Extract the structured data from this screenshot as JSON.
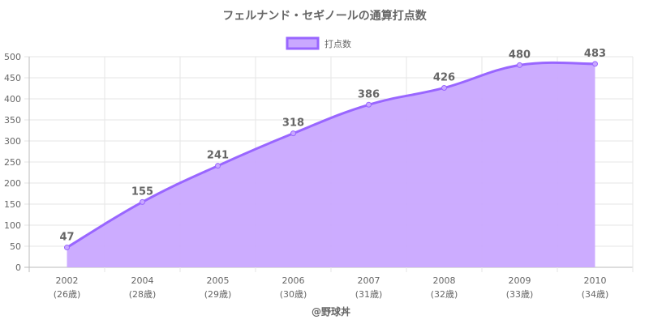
{
  "chart_data": {
    "type": "area",
    "title": "フェルナンド・セギノールの通算打点数",
    "categories": [
      "2002",
      "2004",
      "2005",
      "2006",
      "2007",
      "2008",
      "2009",
      "2010"
    ],
    "category_sublabels": [
      "(26歳)",
      "(28歳)",
      "(29歳)",
      "(30歳)",
      "(31歳)",
      "(32歳)",
      "(33歳)",
      "(34歳)"
    ],
    "series": [
      {
        "name": "打点数",
        "values": [
          47,
          155,
          241,
          318,
          386,
          426,
          480,
          483
        ]
      }
    ],
    "ylim": [
      0,
      500
    ],
    "yticks": [
      0,
      50,
      100,
      150,
      200,
      250,
      300,
      350,
      400,
      450,
      500
    ],
    "legend_position": "top",
    "grid": true,
    "line_color": "#9966ff",
    "fill_color": "#c9a8ff",
    "credit": "@野球丼"
  }
}
